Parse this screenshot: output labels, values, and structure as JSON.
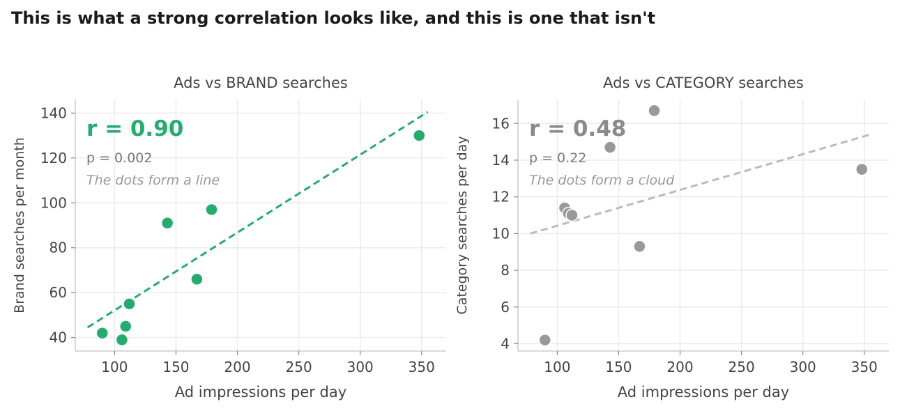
{
  "title": "This is what a strong correlation looks like, and this is one that isn't",
  "colors": {
    "strong": "#22ad6f",
    "weak": "#999999",
    "weak_line": "#bbbbbb",
    "grid": "#ebebeb",
    "axis": "#cccccc",
    "text": "#444444"
  },
  "chart_data": [
    {
      "type": "scatter",
      "title": "Ads vs BRAND searches",
      "xlabel": "Ad impressions per day",
      "ylabel": "Brand searches per month",
      "xlim": [
        68,
        370
      ],
      "ylim": [
        34,
        146
      ],
      "xticks": [
        100,
        150,
        200,
        250,
        300,
        350
      ],
      "yticks": [
        40,
        60,
        80,
        100,
        120,
        140
      ],
      "points": [
        {
          "x": 90,
          "y": 42
        },
        {
          "x": 106,
          "y": 39
        },
        {
          "x": 109,
          "y": 45
        },
        {
          "x": 112,
          "y": 55
        },
        {
          "x": 143,
          "y": 91
        },
        {
          "x": 167,
          "y": 66
        },
        {
          "x": 179,
          "y": 97
        },
        {
          "x": 348,
          "y": 130
        }
      ],
      "trend": {
        "x": [
          78,
          355
        ],
        "y": [
          44.5,
          140.5
        ]
      },
      "annotation": {
        "r": "r = 0.90",
        "p": "p = 0.002",
        "note": "The dots form a line"
      },
      "grid": true
    },
    {
      "type": "scatter",
      "title": "Ads vs CATEGORY searches",
      "xlabel": "Ad impressions per day",
      "ylabel": "Category searches per day",
      "xlim": [
        68,
        370
      ],
      "ylim": [
        3.6,
        17.3
      ],
      "xticks": [
        100,
        150,
        200,
        250,
        300,
        350
      ],
      "yticks": [
        4,
        6,
        8,
        10,
        12,
        14,
        16
      ],
      "points": [
        {
          "x": 90,
          "y": 4.2
        },
        {
          "x": 106,
          "y": 11.4
        },
        {
          "x": 109,
          "y": 11.1
        },
        {
          "x": 112,
          "y": 11.0
        },
        {
          "x": 143,
          "y": 14.7
        },
        {
          "x": 167,
          "y": 9.3
        },
        {
          "x": 179,
          "y": 16.7
        },
        {
          "x": 348,
          "y": 13.5
        }
      ],
      "trend": {
        "x": [
          78,
          355
        ],
        "y": [
          10.0,
          15.4
        ]
      },
      "annotation": {
        "r": "r = 0.48",
        "p": "p = 0.22",
        "note": "The dots form a cloud"
      },
      "grid": true
    }
  ]
}
